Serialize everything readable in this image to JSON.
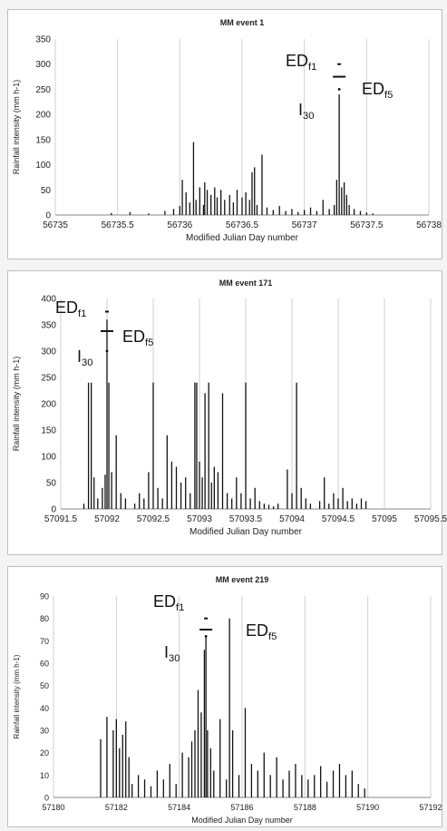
{
  "chart_data": [
    {
      "type": "bar",
      "title": "MM event 1",
      "xlabel": "Modified Julian Day number",
      "ylabel": "Rainfall intensity (mm h-1)",
      "xlim": [
        56735,
        56738
      ],
      "ylim": [
        0,
        350
      ],
      "xticks": [
        56735,
        56735.5,
        56736,
        56736.5,
        56737,
        56737.5,
        56738
      ],
      "xtick_labels": [
        "56735",
        "56735.5",
        "56736",
        "56736.5",
        "56737",
        "56737.5",
        "56738"
      ],
      "yticks": [
        0,
        50,
        100,
        150,
        200,
        250,
        300,
        350
      ],
      "grid": "vertical",
      "color": "#111111",
      "series": [
        {
          "x": [
            56735.45,
            56735.6,
            56735.75,
            56735.88,
            56735.95,
            56736.0,
            56736.02,
            56736.05,
            56736.08,
            56736.11,
            56736.13,
            56736.16,
            56736.19,
            56736.2,
            56736.22,
            56736.25,
            56736.28,
            56736.3,
            56736.33,
            56736.36,
            56736.4,
            56736.43,
            56736.46,
            56736.5,
            56736.53,
            56736.56,
            56736.58,
            56736.6,
            56736.62,
            56736.66,
            56736.7,
            56736.75,
            56736.8,
            56736.85,
            56736.9,
            56736.95,
            56737.0,
            56737.05,
            56737.1,
            56737.15,
            56737.2,
            56737.24,
            56737.26,
            56737.28,
            56737.3,
            56737.32,
            56737.34,
            56737.36,
            56737.4,
            56737.45,
            56737.5,
            56737.55
          ],
          "y": [
            4,
            6,
            3,
            8,
            12,
            18,
            70,
            45,
            25,
            145,
            30,
            55,
            20,
            65,
            50,
            40,
            55,
            35,
            50,
            30,
            40,
            25,
            50,
            35,
            45,
            30,
            85,
            95,
            20,
            120,
            15,
            10,
            18,
            8,
            12,
            6,
            10,
            15,
            8,
            30,
            12,
            20,
            70,
            240,
            55,
            65,
            40,
            20,
            12,
            8,
            5,
            3
          ]
        }
      ],
      "annotations": {
        "ed_f1": {
          "label": "ED",
          "sub": "f1",
          "value": 300,
          "x": 56737.28
        },
        "ed_f5": {
          "label": "ED",
          "sub": "f5",
          "value": 275,
          "x": 56737.28
        },
        "i30": {
          "label": "I",
          "sub": "30",
          "value": 250,
          "x": 56737.28
        }
      }
    },
    {
      "type": "bar",
      "title": "MM event 171",
      "xlabel": "Modified Julian Day number",
      "ylabel": "Rainfall intensity (mm h-1)",
      "xlim": [
        57091.5,
        57095.5
      ],
      "ylim": [
        0,
        400
      ],
      "xticks": [
        57091.5,
        57092,
        57092.5,
        57093,
        57093.5,
        57094,
        57094.5,
        57095,
        57095.5
      ],
      "xtick_labels": [
        "57091.5",
        "57092",
        "57092.5",
        "57093",
        "57093.5",
        "57094",
        "57094.5",
        "57095",
        "57095.5"
      ],
      "yticks": [
        0,
        50,
        100,
        150,
        200,
        250,
        300,
        350,
        400
      ],
      "grid": "vertical",
      "color": "#111111",
      "series": [
        {
          "x": [
            57091.75,
            57091.8,
            57091.83,
            57091.86,
            57091.9,
            57091.95,
            57091.98,
            57092.0,
            57092.02,
            57092.05,
            57092.1,
            57092.15,
            57092.2,
            57092.3,
            57092.35,
            57092.4,
            57092.45,
            57092.5,
            57092.55,
            57092.6,
            57092.65,
            57092.7,
            57092.75,
            57092.8,
            57092.85,
            57092.9,
            57092.95,
            57092.97,
            57093.0,
            57093.03,
            57093.06,
            57093.1,
            57093.13,
            57093.16,
            57093.2,
            57093.25,
            57093.3,
            57093.35,
            57093.4,
            57093.45,
            57093.5,
            57093.55,
            57093.6,
            57093.65,
            57093.7,
            57093.75,
            57093.8,
            57093.85,
            57093.95,
            57094.0,
            57094.05,
            57094.1,
            57094.15,
            57094.2,
            57094.3,
            57094.35,
            57094.4,
            57094.45,
            57094.5,
            57094.55,
            57094.6,
            57094.65,
            57094.7,
            57094.75,
            57094.8
          ],
          "y": [
            10,
            240,
            240,
            60,
            20,
            40,
            65,
            360,
            240,
            70,
            140,
            30,
            20,
            10,
            30,
            20,
            70,
            240,
            40,
            20,
            140,
            90,
            80,
            50,
            60,
            30,
            240,
            240,
            90,
            60,
            220,
            240,
            50,
            80,
            70,
            220,
            30,
            20,
            60,
            30,
            240,
            20,
            40,
            15,
            10,
            8,
            5,
            10,
            75,
            30,
            240,
            40,
            20,
            10,
            15,
            60,
            10,
            30,
            20,
            40,
            15,
            20,
            10,
            20,
            15
          ]
        }
      ],
      "annotations": {
        "ed_f1": {
          "label": "ED",
          "sub": "f1",
          "value": 375,
          "x": 57092.0
        },
        "ed_f5": {
          "label": "ED",
          "sub": "f5",
          "value": 338,
          "x": 57092.0
        },
        "i30": {
          "label": "I",
          "sub": "30",
          "value": 300,
          "x": 57092.0
        }
      }
    },
    {
      "type": "bar",
      "title": "MM event 219",
      "xlabel": "Modified Julian Day number",
      "ylabel": "Rainfall intensity (mm h-1)",
      "xlim": [
        57180,
        57192
      ],
      "ylim": [
        0,
        90
      ],
      "xticks": [
        57180,
        57182,
        57184,
        57186,
        57188,
        57190,
        57192
      ],
      "xtick_labels": [
        "57180",
        "57182",
        "57184",
        "57186",
        "57188",
        "57190",
        "57192"
      ],
      "yticks": [
        0,
        10,
        20,
        30,
        40,
        50,
        60,
        70,
        80,
        90
      ],
      "grid": "vertical",
      "color": "#111111",
      "series": [
        {
          "x": [
            57181.5,
            57181.7,
            57181.9,
            57182.0,
            57182.1,
            57182.2,
            57182.3,
            57182.4,
            57182.5,
            57182.7,
            57182.9,
            57183.1,
            57183.3,
            57183.5,
            57183.7,
            57183.9,
            57184.1,
            57184.3,
            57184.4,
            57184.5,
            57184.6,
            57184.7,
            57184.8,
            57184.85,
            57184.9,
            57185.0,
            57185.1,
            57185.3,
            57185.5,
            57185.6,
            57185.7,
            57185.9,
            57186.1,
            57186.3,
            57186.5,
            57186.7,
            57186.9,
            57187.1,
            57187.3,
            57187.5,
            57187.7,
            57187.9,
            57188.1,
            57188.3,
            57188.5,
            57188.7,
            57188.9,
            57189.1,
            57189.3,
            57189.5,
            57189.7,
            57189.9
          ],
          "y": [
            26,
            36,
            30,
            35,
            22,
            28,
            34,
            18,
            6,
            10,
            8,
            5,
            12,
            8,
            15,
            6,
            20,
            18,
            25,
            30,
            48,
            38,
            66,
            72,
            30,
            22,
            12,
            35,
            8,
            80,
            30,
            10,
            40,
            15,
            12,
            20,
            10,
            18,
            8,
            12,
            15,
            10,
            8,
            10,
            14,
            7,
            12,
            15,
            10,
            12,
            6,
            4
          ]
        }
      ],
      "annotations": {
        "ed_f1": {
          "label": "ED",
          "sub": "f1",
          "value": 80,
          "x": 57184.85
        },
        "ed_f5": {
          "label": "ED",
          "sub": "f5",
          "value": 75,
          "x": 57184.85
        },
        "i30": {
          "label": "I",
          "sub": "30",
          "value": 72,
          "x": 57184.85
        }
      }
    }
  ]
}
